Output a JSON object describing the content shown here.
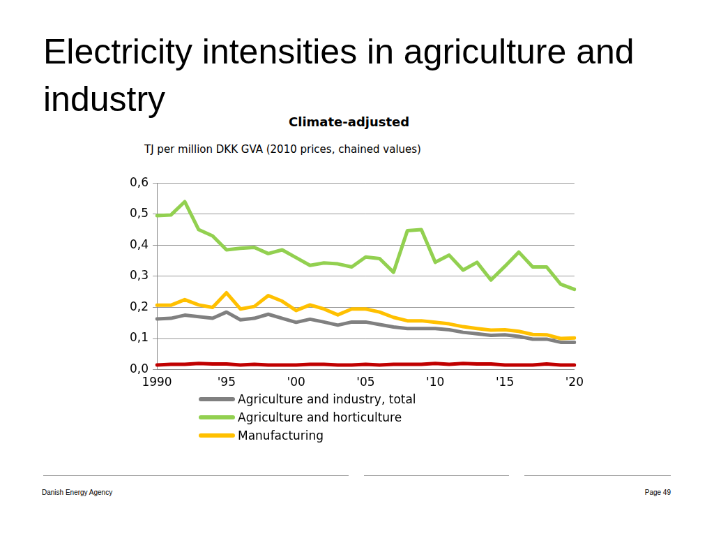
{
  "chart_data": {
    "type": "line",
    "title": "Electricity intensities in agriculture and industry",
    "subtitle": "Climate-adjusted",
    "y_label": "TJ per million DKK GVA (2010 prices, chained values)",
    "categories": [
      "1990",
      null,
      null,
      null,
      null,
      "'95",
      null,
      null,
      null,
      null,
      "'00",
      null,
      null,
      null,
      null,
      "'05",
      null,
      null,
      null,
      null,
      "'10",
      null,
      null,
      null,
      null,
      "'15",
      null,
      null,
      null,
      null,
      "'20"
    ],
    "series": [
      {
        "name": "Agriculture and industry, total",
        "color": "#808080",
        "values": [
          0.163,
          0.165,
          0.175,
          0.17,
          0.165,
          0.185,
          0.16,
          0.165,
          0.178,
          0.165,
          0.152,
          0.162,
          0.153,
          0.143,
          0.153,
          0.153,
          0.145,
          0.137,
          0.132,
          0.132,
          0.132,
          0.128,
          0.12,
          0.115,
          0.11,
          0.112,
          0.107,
          0.098,
          0.098,
          0.088,
          0.088
        ]
      },
      {
        "name": "Agriculture and horticulture",
        "color": "#92d050",
        "values": [
          0.495,
          0.497,
          0.54,
          0.45,
          0.43,
          0.385,
          0.39,
          0.393,
          0.373,
          0.385,
          0.36,
          0.335,
          0.343,
          0.34,
          0.33,
          0.362,
          0.357,
          0.313,
          0.447,
          0.45,
          0.345,
          0.368,
          0.32,
          0.345,
          0.288,
          0.332,
          0.378,
          0.33,
          0.33,
          0.275,
          0.258
        ]
      },
      {
        "name": "Manufacturing",
        "color": "#ffc000",
        "values": [
          0.207,
          0.207,
          0.225,
          0.208,
          0.2,
          0.247,
          0.195,
          0.203,
          0.238,
          0.22,
          0.19,
          0.208,
          0.195,
          0.176,
          0.195,
          0.195,
          0.185,
          0.168,
          0.157,
          0.157,
          0.152,
          0.147,
          0.138,
          0.132,
          0.127,
          0.128,
          0.123,
          0.113,
          0.112,
          0.1,
          0.102
        ]
      },
      {
        "color": "#c00000",
        "values": [
          0.015,
          0.017,
          0.017,
          0.02,
          0.018,
          0.018,
          0.015,
          0.017,
          0.015,
          0.015,
          0.015,
          0.017,
          0.017,
          0.015,
          0.015,
          0.017,
          0.015,
          0.017,
          0.017,
          0.017,
          0.02,
          0.017,
          0.02,
          0.018,
          0.018,
          0.015,
          0.015,
          0.015,
          0.018,
          0.015,
          0.015
        ]
      }
    ],
    "ylim": [
      0,
      0.6
    ],
    "yticks": [
      {
        "value": 0,
        "label": "0,0"
      },
      {
        "value": 0.1,
        "label": "0,1"
      },
      {
        "value": 0.2,
        "label": "0,2"
      },
      {
        "value": 0.3,
        "label": "0,3"
      },
      {
        "value": 0.4,
        "label": "0,4"
      },
      {
        "value": 0.5,
        "label": "0,5"
      },
      {
        "value": 0.6,
        "label": "0,6"
      }
    ],
    "grid": true,
    "legend": "bottom"
  },
  "footer": {
    "source": "Danish Energy Agency",
    "page": "Page 49"
  }
}
